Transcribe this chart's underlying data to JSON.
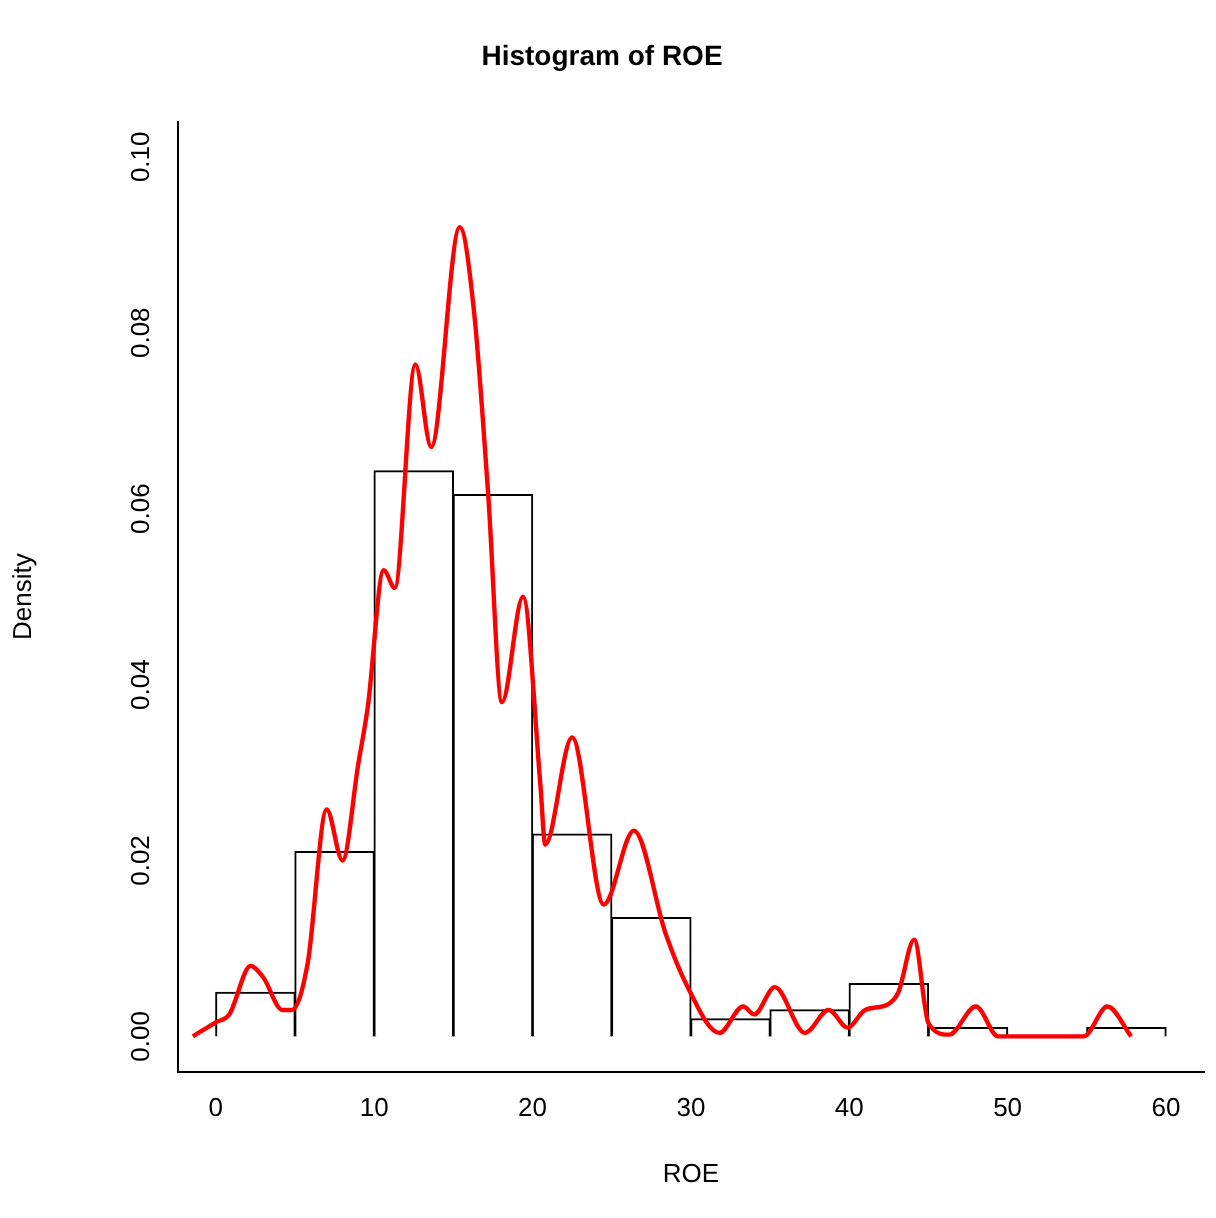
{
  "chart_data": {
    "type": "histogram",
    "title": "Histogram of ROE",
    "xlabel": "ROE",
    "ylabel": "Density",
    "bins": [
      0,
      5,
      10,
      15,
      20,
      25,
      30,
      35,
      40,
      45,
      50,
      55,
      60
    ],
    "values": [
      0.005,
      0.021,
      0.0643,
      0.0616,
      0.023,
      0.0135,
      0.002,
      0.003,
      0.006,
      0.001,
      0,
      0.001
    ],
    "color": "#ffffff",
    "series": [
      {
        "type": "line",
        "color": "#ff0000",
        "x": [
          -1.45,
          0,
          0.85,
          2.2,
          3.0,
          4.2,
          4.8,
          5.8,
          7.0,
          8.0,
          9.0,
          9.6,
          10.6,
          11.3,
          12.6,
          13.6,
          15.4,
          16.3,
          17.2,
          18.07,
          19.4,
          20.5,
          20.8,
          22.5,
          24.5,
          26.4,
          28.4,
          29.8,
          31.8,
          33.3,
          34,
          35.3,
          37.2,
          38.7,
          39.9,
          41,
          42.4,
          43.1,
          44.1,
          45,
          46.3,
          48,
          49.4,
          54.8,
          56.3,
          57.8
        ],
        "values": [
          0,
          0.0016,
          0.0025,
          0.008,
          0.0067,
          0.003,
          0.003,
          0.0083,
          0.0258,
          0.02,
          0.031,
          0.0375,
          0.053,
          0.051,
          0.0764,
          0.067,
          0.092,
          0.0825,
          0.0616,
          0.038,
          0.05,
          0.0285,
          0.0218,
          0.034,
          0.015,
          0.0234,
          0.0117,
          0.0056,
          0.0004,
          0.0034,
          0.0025,
          0.0056,
          0.0004,
          0.003,
          0.001,
          0.003,
          0.0036,
          0.005,
          0.011,
          0.0015,
          0.0002,
          0.0034,
          0,
          0,
          0.0034,
          0
        ]
      }
    ],
    "xlim": [
      -2.4,
      62.4
    ],
    "ylim": [
      -0.004,
      0.104
    ],
    "xticks": [
      0,
      10,
      20,
      30,
      40,
      50,
      60
    ],
    "yticks": [
      {
        "value": 0,
        "label": "0.00"
      },
      0.02,
      0.04,
      0.06,
      0.08,
      {
        "value": 0.1,
        "label": "0.10"
      }
    ],
    "grid": false,
    "legend": false
  }
}
